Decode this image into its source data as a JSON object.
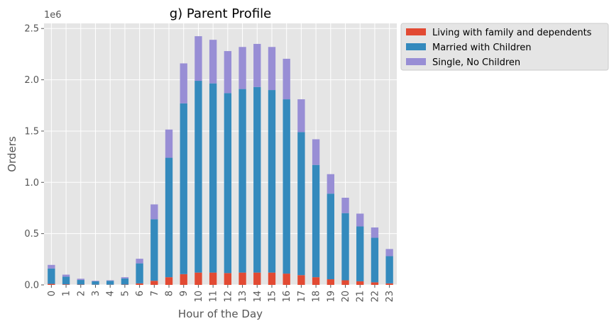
{
  "chart_data": {
    "type": "bar",
    "stacked": true,
    "title": "g) Parent Profile",
    "xlabel": "Hour of the Day",
    "ylabel": "Orders",
    "y_offset_label": "1e6",
    "ylim": [
      0,
      2.55
    ],
    "yticks": [
      "0.0",
      "0.5",
      "1.0",
      "1.5",
      "2.0",
      "2.5"
    ],
    "grid": true,
    "legend_position": "outside-top-right",
    "categories": [
      "0",
      "1",
      "2",
      "3",
      "4",
      "5",
      "6",
      "7",
      "8",
      "9",
      "10",
      "11",
      "12",
      "13",
      "14",
      "15",
      "16",
      "17",
      "18",
      "19",
      "20",
      "21",
      "22",
      "23"
    ],
    "series": [
      {
        "name": "Living with family and dependents",
        "color": "#E24A33",
        "values": [
          0.01,
          0.005,
          0.003,
          0.002,
          0.002,
          0.003,
          0.015,
          0.04,
          0.075,
          0.105,
          0.12,
          0.12,
          0.115,
          0.12,
          0.12,
          0.12,
          0.11,
          0.095,
          0.075,
          0.055,
          0.045,
          0.035,
          0.025,
          0.015
        ]
      },
      {
        "name": "Married with Children",
        "color": "#348ABD",
        "values": [
          0.15,
          0.075,
          0.045,
          0.033,
          0.038,
          0.06,
          0.195,
          0.6,
          1.165,
          1.665,
          1.87,
          1.845,
          1.755,
          1.79,
          1.81,
          1.78,
          1.7,
          1.395,
          1.095,
          0.835,
          0.655,
          0.535,
          0.435,
          0.265
        ]
      },
      {
        "name": "Single, No Children",
        "color": "#988ED5",
        "values": [
          0.035,
          0.02,
          0.012,
          0.005,
          0.005,
          0.012,
          0.045,
          0.145,
          0.275,
          0.39,
          0.435,
          0.425,
          0.41,
          0.41,
          0.42,
          0.42,
          0.395,
          0.32,
          0.25,
          0.19,
          0.15,
          0.125,
          0.1,
          0.07
        ]
      }
    ]
  },
  "colors": {
    "plot_bg": "#E5E5E5",
    "grid": "#FFFFFF",
    "legend_bg": "#E5E5E5",
    "legend_border": "#CCCCCC"
  }
}
